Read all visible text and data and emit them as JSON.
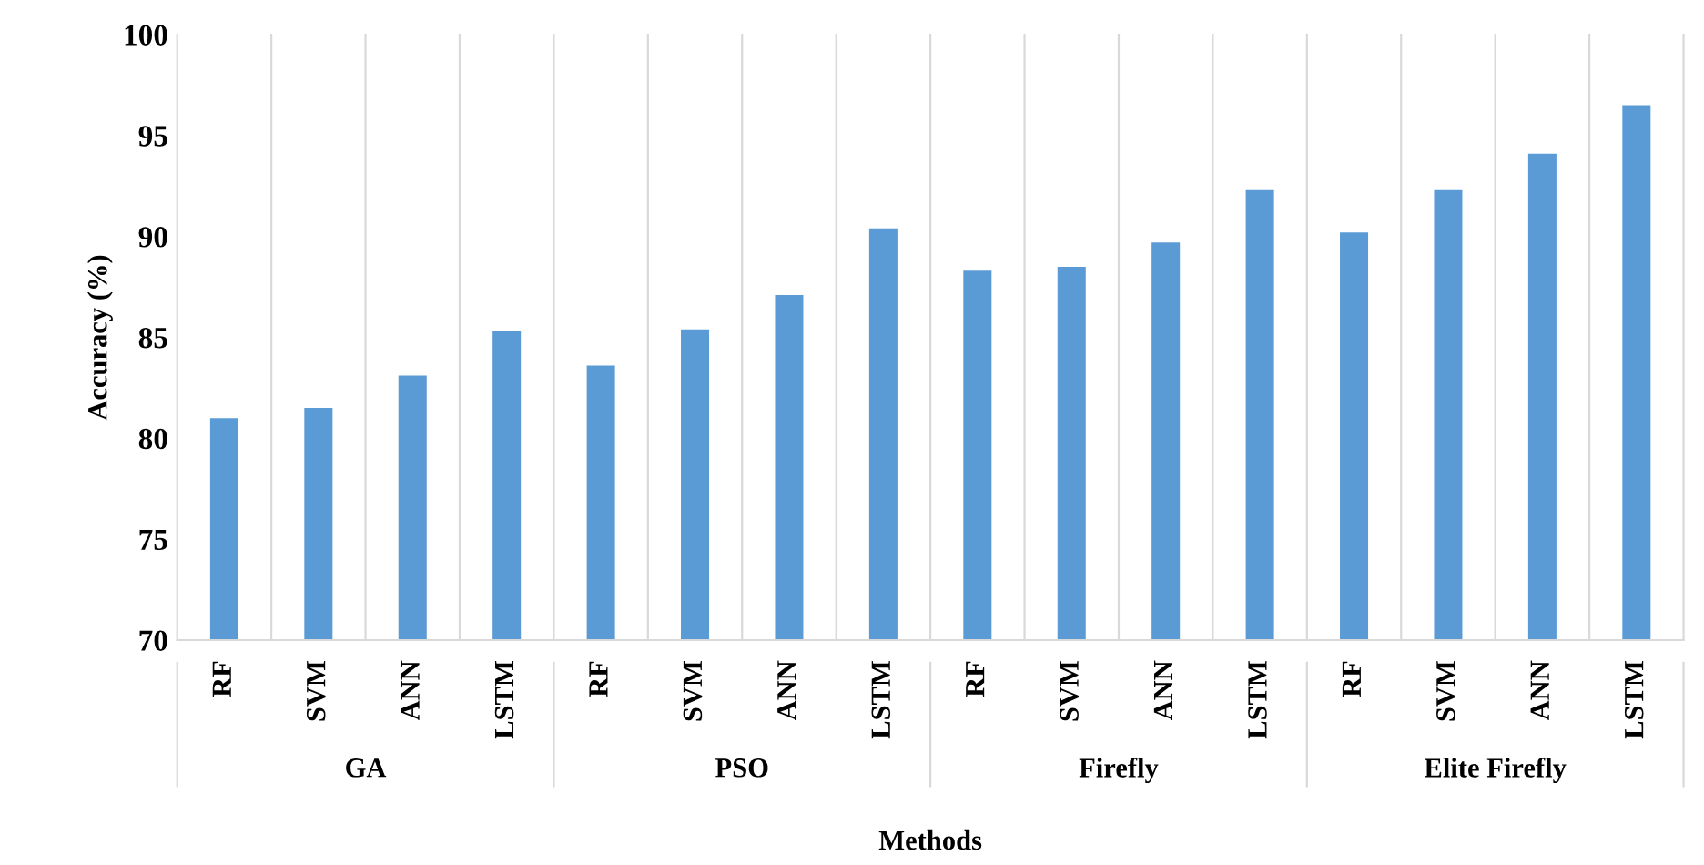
{
  "chart_data": {
    "type": "bar",
    "xlabel": "Methods",
    "ylabel": "Accuracy (%)",
    "categories": [
      "RF",
      "SVM",
      "ANN",
      "LSTM",
      "RF",
      "SVM",
      "ANN",
      "LSTM",
      "RF",
      "SVM",
      "ANN",
      "LSTM",
      "RF",
      "SVM",
      "ANN",
      "LSTM"
    ],
    "values": [
      81.0,
      81.5,
      83.1,
      85.3,
      83.6,
      85.4,
      87.1,
      90.4,
      88.3,
      88.5,
      89.7,
      92.3,
      90.2,
      92.3,
      94.1,
      96.5
    ],
    "color": "#5b9bd5",
    "annotations": [
      "GA",
      "PSO",
      "Firefly",
      "Elite Firefly"
    ],
    "ylim": [
      70,
      100
    ],
    "yticks": [
      70,
      75,
      80,
      85,
      90,
      95,
      100
    ],
    "grid": false,
    "legend": false
  }
}
